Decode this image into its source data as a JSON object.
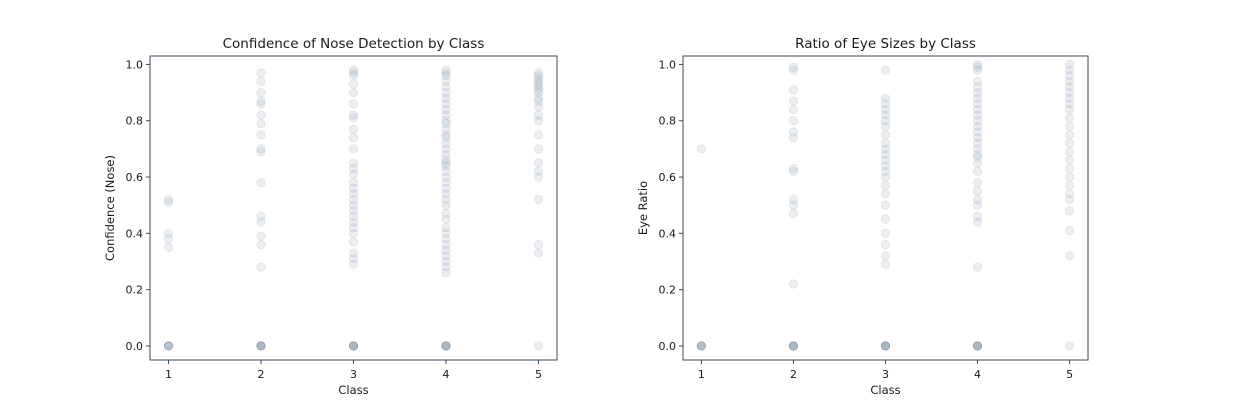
{
  "chart_data": [
    {
      "type": "scatter",
      "title": "Confidence of Nose Detection by Class",
      "xlabel": "Class",
      "ylabel": "Confidence (Nose)",
      "xlim": [
        0.8,
        5.2
      ],
      "ylim": [
        -0.05,
        1.03
      ],
      "xticks": [
        1,
        2,
        3,
        4,
        5
      ],
      "yticks": [
        0.0,
        0.2,
        0.4,
        0.6,
        0.8,
        1.0
      ],
      "ytick_labels": [
        "0.0",
        "0.2",
        "0.4",
        "0.6",
        "0.8",
        "1.0"
      ],
      "grid": false,
      "marker_color": "#6f8499",
      "points": [
        {
          "x": 1,
          "ys": [
            0.0,
            0.0,
            0.0,
            0.0,
            0.0,
            0.35,
            0.38,
            0.4,
            0.51,
            0.52
          ]
        },
        {
          "x": 2,
          "ys": [
            0.0,
            0.0,
            0.0,
            0.0,
            0.0,
            0.0,
            0.28,
            0.36,
            0.39,
            0.44,
            0.46,
            0.58,
            0.69,
            0.7,
            0.75,
            0.79,
            0.82,
            0.86,
            0.87,
            0.9,
            0.94,
            0.97
          ]
        },
        {
          "x": 3,
          "ys": [
            0.0,
            0.0,
            0.0,
            0.0,
            0.0,
            0.0,
            0.29,
            0.31,
            0.33,
            0.37,
            0.4,
            0.42,
            0.44,
            0.46,
            0.48,
            0.5,
            0.52,
            0.54,
            0.56,
            0.58,
            0.61,
            0.63,
            0.65,
            0.7,
            0.74,
            0.77,
            0.81,
            0.82,
            0.86,
            0.9,
            0.93,
            0.96,
            0.97,
            0.98
          ]
        },
        {
          "x": 4,
          "ys": [
            0.0,
            0.0,
            0.0,
            0.0,
            0.0,
            0.0,
            0.26,
            0.28,
            0.3,
            0.32,
            0.34,
            0.36,
            0.38,
            0.4,
            0.42,
            0.45,
            0.47,
            0.5,
            0.52,
            0.54,
            0.56,
            0.58,
            0.6,
            0.62,
            0.64,
            0.65,
            0.66,
            0.68,
            0.7,
            0.72,
            0.74,
            0.75,
            0.77,
            0.79,
            0.8,
            0.82,
            0.84,
            0.86,
            0.88,
            0.9,
            0.92,
            0.94,
            0.96,
            0.97,
            0.98
          ]
        },
        {
          "x": 5,
          "ys": [
            0.0,
            0.33,
            0.36,
            0.52,
            0.6,
            0.62,
            0.65,
            0.7,
            0.75,
            0.8,
            0.82,
            0.85,
            0.87,
            0.88,
            0.9,
            0.91,
            0.92,
            0.93,
            0.94,
            0.95,
            0.96,
            0.97
          ]
        }
      ]
    },
    {
      "type": "scatter",
      "title": "Ratio of Eye Sizes by Class",
      "xlabel": "Class",
      "ylabel": "Eye Ratio",
      "xlim": [
        0.8,
        5.2
      ],
      "ylim": [
        -0.05,
        1.03
      ],
      "xticks": [
        1,
        2,
        3,
        4,
        5
      ],
      "yticks": [
        0.0,
        0.2,
        0.4,
        0.6,
        0.8,
        1.0
      ],
      "ytick_labels": [
        "0.0",
        "0.2",
        "0.4",
        "0.6",
        "0.8",
        "1.0"
      ],
      "grid": false,
      "marker_color": "#6f8499",
      "points": [
        {
          "x": 1,
          "ys": [
            0.0,
            0.0,
            0.0,
            0.0,
            0.0,
            0.7
          ]
        },
        {
          "x": 2,
          "ys": [
            0.0,
            0.0,
            0.0,
            0.0,
            0.0,
            0.0,
            0.22,
            0.47,
            0.5,
            0.52,
            0.62,
            0.63,
            0.74,
            0.76,
            0.8,
            0.84,
            0.87,
            0.91,
            0.98,
            0.99
          ]
        },
        {
          "x": 3,
          "ys": [
            0.0,
            0.0,
            0.0,
            0.0,
            0.0,
            0.0,
            0.29,
            0.32,
            0.36,
            0.4,
            0.45,
            0.5,
            0.54,
            0.57,
            0.6,
            0.62,
            0.64,
            0.66,
            0.68,
            0.7,
            0.72,
            0.75,
            0.78,
            0.8,
            0.82,
            0.84,
            0.86,
            0.88,
            0.98
          ]
        },
        {
          "x": 4,
          "ys": [
            0.0,
            0.0,
            0.0,
            0.0,
            0.0,
            0.0,
            0.28,
            0.44,
            0.46,
            0.5,
            0.52,
            0.55,
            0.58,
            0.62,
            0.65,
            0.67,
            0.68,
            0.7,
            0.72,
            0.74,
            0.76,
            0.78,
            0.8,
            0.82,
            0.84,
            0.86,
            0.88,
            0.9,
            0.92,
            0.94,
            0.98,
            0.99,
            1.0
          ]
        },
        {
          "x": 5,
          "ys": [
            0.0,
            0.32,
            0.41,
            0.48,
            0.52,
            0.54,
            0.57,
            0.6,
            0.63,
            0.66,
            0.69,
            0.72,
            0.75,
            0.78,
            0.81,
            0.84,
            0.86,
            0.88,
            0.9,
            0.92,
            0.94,
            0.96,
            0.98,
            1.0
          ]
        }
      ]
    }
  ]
}
